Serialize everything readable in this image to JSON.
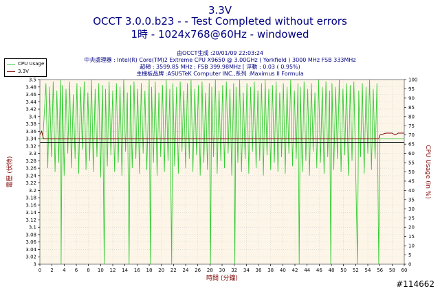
{
  "chart_data": {
    "type": "line",
    "title": "3.3V",
    "subtitle1": "OCCT 3.0.0.b23 -  - Test Completed without errors",
    "subtitle2": "1時 - 1024x768@60Hz - windowed",
    "info_lines": [
      "由OCCT生成 :20/01/09 22:03:24",
      "中央處理器 : Intel(R) Core(TM)2 Extreme CPU X9650 @ 3.00GHz ( Yorkfield ) 3000 MHz FSB 333MHz",
      "超頻 : 3599.85 MHz ; FSB 399.98MHz [ 浮動 : 0.03 ( 0.95%)",
      "主機板品牌 :ASUSTeK Computer INC.,系列 :Maximus II Formula"
    ],
    "xlabel": "時間 (分鐘)",
    "ylabel_left": "電壓 (伏特)",
    "ylabel_right": "CPU Usage (in %)",
    "xlim": [
      0,
      60
    ],
    "ylim_left": [
      3.0,
      3.5
    ],
    "ylim_right": [
      0,
      100
    ],
    "x_ticks": [
      0,
      2,
      4,
      6,
      8,
      10,
      12,
      14,
      16,
      18,
      20,
      22,
      24,
      26,
      28,
      30,
      32,
      34,
      36,
      38,
      40,
      42,
      44,
      46,
      48,
      50,
      52,
      54,
      56,
      58,
      60
    ],
    "y_left_ticks": [
      "3",
      "3.02",
      "3.04",
      "3.06",
      "3.08",
      "3.1",
      "3.12",
      "3.14",
      "3.16",
      "3.18",
      "3.2",
      "3.22",
      "3.24",
      "3.26",
      "3.28",
      "3.3",
      "3.32",
      "3.34",
      "3.36",
      "3.38",
      "3.4",
      "3.42",
      "3.44",
      "3.46",
      "3.48",
      "3.5"
    ],
    "y_right_ticks": [
      "0",
      "5",
      "10",
      "15",
      "20",
      "25",
      "30",
      "35",
      "40",
      "45",
      "50",
      "55",
      "60",
      "65",
      "70",
      "75",
      "80",
      "85",
      "90",
      "95",
      "100"
    ],
    "grid": true,
    "legend_position": "top-left",
    "series": [
      {
        "name": "CPU Usage",
        "color": "#33cc33",
        "axis": "right",
        "description": "rapidly oscillating between roughly 45% and 100% from 1 to 56 minutes, with brief drops to 0%",
        "points": [
          [
            0,
            68
          ],
          [
            0.5,
            68
          ],
          [
            1,
            98
          ],
          [
            1.3,
            52
          ],
          [
            1.6,
            96
          ],
          [
            1.9,
            58
          ],
          [
            2.2,
            99
          ],
          [
            2.5,
            50
          ],
          [
            2.8,
            94
          ],
          [
            3.1,
            55
          ],
          [
            3.4,
            100
          ],
          [
            3.5,
            0
          ],
          [
            3.7,
            97
          ],
          [
            4.0,
            48
          ],
          [
            4.3,
            95
          ],
          [
            4.6,
            60
          ],
          [
            4.9,
            99
          ],
          [
            5.2,
            52
          ],
          [
            5.5,
            92
          ],
          [
            5.8,
            57
          ],
          [
            6.1,
            98
          ],
          [
            6.4,
            49
          ],
          [
            6.7,
            96
          ],
          [
            7.0,
            62
          ],
          [
            7.3,
            99
          ],
          [
            7.6,
            51
          ],
          [
            7.9,
            93
          ],
          [
            8.2,
            56
          ],
          [
            8.5,
            100
          ],
          [
            8.8,
            50
          ],
          [
            9.1,
            95
          ],
          [
            9.4,
            58
          ],
          [
            9.7,
            98
          ],
          [
            10.0,
            47
          ],
          [
            10.3,
            97
          ],
          [
            10.6,
            0
          ],
          [
            10.8,
            95
          ],
          [
            11.1,
            53
          ],
          [
            11.4,
            99
          ],
          [
            11.7,
            59
          ],
          [
            12.0,
            94
          ],
          [
            12.3,
            50
          ],
          [
            12.6,
            98
          ],
          [
            12.9,
            55
          ],
          [
            13.2,
            96
          ],
          [
            13.5,
            48
          ],
          [
            13.8,
            100
          ],
          [
            14.1,
            61
          ],
          [
            14.4,
            93
          ],
          [
            14.7,
            0
          ],
          [
            14.9,
            97
          ],
          [
            15.2,
            52
          ],
          [
            15.5,
            99
          ],
          [
            15.8,
            57
          ],
          [
            16.1,
            95
          ],
          [
            16.4,
            49
          ],
          [
            16.7,
            98
          ],
          [
            17.0,
            60
          ],
          [
            17.3,
            94
          ],
          [
            17.6,
            51
          ],
          [
            18.0,
            100
          ],
          [
            18.2,
            0
          ],
          [
            18.4,
            96
          ],
          [
            18.7,
            55
          ],
          [
            19.0,
            99
          ],
          [
            19.3,
            48
          ],
          [
            19.6,
            93
          ],
          [
            19.9,
            58
          ],
          [
            20.2,
            97
          ],
          [
            20.5,
            50
          ],
          [
            20.8,
            100
          ],
          [
            21.1,
            56
          ],
          [
            21.4,
            95
          ],
          [
            21.7,
            0
          ],
          [
            21.9,
            98
          ],
          [
            22.2,
            53
          ],
          [
            22.5,
            96
          ],
          [
            22.8,
            49
          ],
          [
            23.1,
            99
          ],
          [
            23.4,
            61
          ],
          [
            23.7,
            94
          ],
          [
            24.0,
            52
          ],
          [
            24.3,
            98
          ],
          [
            24.6,
            57
          ],
          [
            24.9,
            100
          ],
          [
            25.2,
            50
          ],
          [
            25.5,
            95
          ],
          [
            25.8,
            59
          ],
          [
            26.1,
            97
          ],
          [
            26.4,
            48
          ],
          [
            26.7,
            99
          ],
          [
            27.0,
            55
          ],
          [
            27.3,
            93
          ],
          [
            27.6,
            51
          ],
          [
            27.9,
            98
          ],
          [
            28.1,
            0
          ],
          [
            28.3,
            96
          ],
          [
            28.6,
            58
          ],
          [
            28.9,
            100
          ],
          [
            29.2,
            49
          ],
          [
            29.5,
            94
          ],
          [
            29.8,
            56
          ],
          [
            30.1,
            97
          ],
          [
            30.4,
            52
          ],
          [
            30.7,
            99
          ],
          [
            31.0,
            60
          ],
          [
            31.3,
            95
          ],
          [
            31.6,
            48
          ],
          [
            31.9,
            98
          ],
          [
            32.1,
            0
          ],
          [
            32.3,
            96
          ],
          [
            32.6,
            55
          ],
          [
            32.9,
            100
          ],
          [
            33.2,
            50
          ],
          [
            33.5,
            93
          ],
          [
            33.8,
            57
          ],
          [
            34.1,
            98
          ],
          [
            34.4,
            49
          ],
          [
            34.7,
            96
          ],
          [
            35.0,
            61
          ],
          [
            35.3,
            99
          ],
          [
            35.6,
            52
          ],
          [
            35.9,
            94
          ],
          [
            36.2,
            56
          ],
          [
            36.5,
            98
          ],
          [
            36.8,
            48
          ],
          [
            37.1,
            100
          ],
          [
            37.4,
            59
          ],
          [
            37.7,
            95
          ],
          [
            38.0,
            51
          ],
          [
            38.3,
            97
          ],
          [
            38.6,
            55
          ],
          [
            38.9,
            99
          ],
          [
            39.2,
            50
          ],
          [
            39.5,
            93
          ],
          [
            39.8,
            58
          ],
          [
            40.1,
            98
          ],
          [
            40.4,
            49
          ],
          [
            40.7,
            96
          ],
          [
            41.0,
            60
          ],
          [
            41.3,
            100
          ],
          [
            41.6,
            53
          ],
          [
            41.9,
            94
          ],
          [
            42.2,
            57
          ],
          [
            42.5,
            98
          ],
          [
            42.7,
            0
          ],
          [
            42.9,
            96
          ],
          [
            43.2,
            50
          ],
          [
            43.5,
            99
          ],
          [
            43.8,
            56
          ],
          [
            44.1,
            95
          ],
          [
            44.4,
            48
          ],
          [
            44.7,
            98
          ],
          [
            45.0,
            61
          ],
          [
            45.3,
            93
          ],
          [
            45.6,
            52
          ],
          [
            45.9,
            100
          ],
          [
            46.2,
            55
          ],
          [
            46.5,
            96
          ],
          [
            46.8,
            49
          ],
          [
            47.1,
            99
          ],
          [
            47.4,
            58
          ],
          [
            47.7,
            94
          ],
          [
            47.9,
            0
          ],
          [
            48.1,
            98
          ],
          [
            48.4,
            51
          ],
          [
            48.7,
            96
          ],
          [
            49.0,
            57
          ],
          [
            49.3,
            100
          ],
          [
            49.6,
            50
          ],
          [
            49.9,
            95
          ],
          [
            50.2,
            59
          ],
          [
            50.5,
            98
          ],
          [
            50.8,
            48
          ],
          [
            51.1,
            97
          ],
          [
            51.4,
            56
          ],
          [
            51.7,
            99
          ],
          [
            52.0,
            52
          ],
          [
            52.3,
            0
          ],
          [
            52.5,
            94
          ],
          [
            52.8,
            58
          ],
          [
            53.1,
            98
          ],
          [
            53.4,
            49
          ],
          [
            53.7,
            96
          ],
          [
            54.0,
            60
          ],
          [
            54.3,
            100
          ],
          [
            54.6,
            51
          ],
          [
            54.9,
            95
          ],
          [
            55.2,
            57
          ],
          [
            55.5,
            98
          ],
          [
            55.8,
            0
          ],
          [
            56.0,
            68
          ],
          [
            57,
            68
          ],
          [
            58,
            68
          ],
          [
            59,
            68
          ],
          [
            60,
            68
          ]
        ]
      },
      {
        "name": "3.3V",
        "color": "#800000",
        "axis": "left",
        "description": "steady around 3.34 V, flat segment near 3.35 V after 56 minutes",
        "points": [
          [
            0,
            3.35
          ],
          [
            0.3,
            3.36
          ],
          [
            0.6,
            3.34
          ],
          [
            1,
            3.34
          ],
          [
            3,
            3.34
          ],
          [
            5,
            3.34
          ],
          [
            7,
            3.34
          ],
          [
            10,
            3.34
          ],
          [
            13,
            3.34
          ],
          [
            16,
            3.34
          ],
          [
            20,
            3.34
          ],
          [
            24,
            3.34
          ],
          [
            28,
            3.34
          ],
          [
            32,
            3.34
          ],
          [
            36,
            3.34
          ],
          [
            40,
            3.34
          ],
          [
            44,
            3.34
          ],
          [
            48,
            3.34
          ],
          [
            52,
            3.34
          ],
          [
            55,
            3.34
          ],
          [
            55.8,
            3.34
          ],
          [
            56,
            3.35
          ],
          [
            57,
            3.355
          ],
          [
            58,
            3.355
          ],
          [
            58.5,
            3.35
          ],
          [
            59,
            3.355
          ],
          [
            60,
            3.355
          ]
        ]
      }
    ],
    "reference_line_value": 3.33
  },
  "watermark": "#114662"
}
